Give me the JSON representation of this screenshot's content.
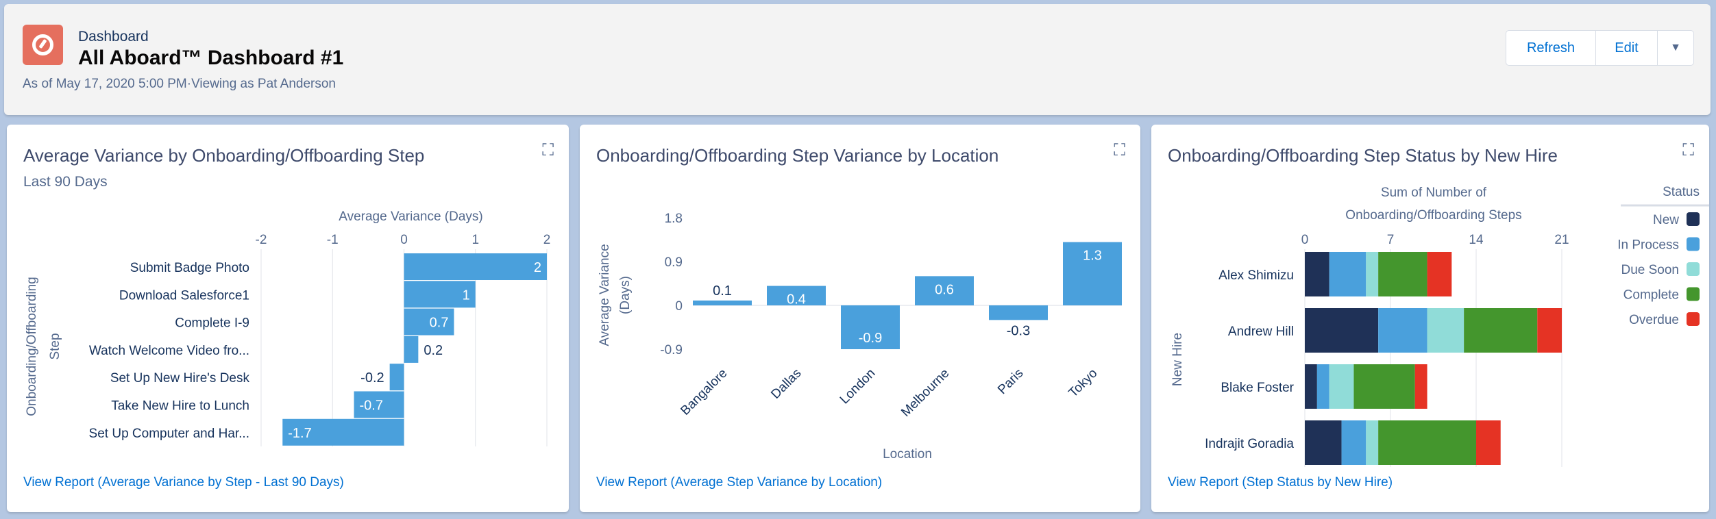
{
  "header": {
    "type": "Dashboard",
    "title": "All Aboard™ Dashboard #1",
    "subtitle": "As of May 17, 2020 5:00 PM·Viewing as Pat Anderson",
    "refresh": "Refresh",
    "edit": "Edit",
    "more": "▼"
  },
  "colors": {
    "bar": "#4aa0dc",
    "title": "#3e4a6b",
    "link": "#0070d2"
  },
  "cards": [
    {
      "title": "Average Variance by Onboarding/Offboarding Step",
      "subtitle": "Last 90 Days",
      "footer": "View Report (Average Variance by Step - Last 90 Days)"
    },
    {
      "title": "Onboarding/Offboarding Step Variance by Location",
      "footer": "View Report (Average Step Variance by Location)"
    },
    {
      "title": "Onboarding/Offboarding Step Status by New Hire",
      "footer": "View Report (Step Status by New Hire)"
    }
  ],
  "chart_data": [
    {
      "type": "bar",
      "orientation": "horizontal",
      "xlabel": "Average Variance (Days)",
      "ylabel": "Onboarding/Offboarding Step",
      "xlim": [
        -2,
        2
      ],
      "xticks": [
        "-2",
        "-1",
        "0",
        "1",
        "2"
      ],
      "categories": [
        "Submit Badge Photo",
        "Download Salesforce1",
        "Complete I-9",
        "Watch Welcome Video fro...",
        "Set Up New Hire's Desk",
        "Take New Hire to Lunch",
        "Set Up Computer and Har..."
      ],
      "values": [
        2,
        1,
        0.7,
        0.2,
        -0.2,
        -0.7,
        -1.7
      ],
      "labels": [
        "2",
        "1",
        "0.7",
        "0.2",
        "-0.2",
        "-0.7",
        "-1.7"
      ]
    },
    {
      "type": "bar",
      "xlabel": "Location",
      "ylabel": "Average Variance (Days)",
      "ylim": [
        -0.9,
        1.8
      ],
      "yticks": [
        "1.8",
        "0.9",
        "0",
        "-0.9"
      ],
      "categories": [
        "Bangalore",
        "Dallas",
        "London",
        "Melbourne",
        "Paris",
        "Tokyo"
      ],
      "values": [
        0.1,
        0.4,
        -0.9,
        0.6,
        -0.3,
        1.3
      ],
      "labels": [
        "0.1",
        "0.4",
        "-0.9",
        "0.6",
        "-0.3",
        "1.3"
      ]
    },
    {
      "type": "bar",
      "orientation": "horizontal",
      "stacked": true,
      "xlabel": [
        "Sum of Number of",
        "Onboarding/Offboarding Steps"
      ],
      "ylabel": "New Hire",
      "xlim": [
        0,
        21
      ],
      "xticks": [
        "0",
        "7",
        "14",
        "21"
      ],
      "legend_title": "Status",
      "legend_placement": "right",
      "categories": [
        "Alex Shimizu",
        "Andrew Hill",
        "Blake Foster",
        "Indrajit Goradia"
      ],
      "series": [
        {
          "name": "New",
          "color": "#1f3157",
          "values": [
            2,
            6,
            1,
            3
          ]
        },
        {
          "name": "In Process",
          "color": "#4aa0dc",
          "values": [
            3,
            4,
            1,
            2
          ]
        },
        {
          "name": "Due Soon",
          "color": "#90dcd8",
          "values": [
            1,
            3,
            2,
            1
          ]
        },
        {
          "name": "Complete",
          "color": "#44962d",
          "values": [
            4,
            6,
            5,
            8
          ]
        },
        {
          "name": "Overdue",
          "color": "#e53324",
          "values": [
            2,
            2,
            1,
            2
          ]
        }
      ]
    }
  ]
}
